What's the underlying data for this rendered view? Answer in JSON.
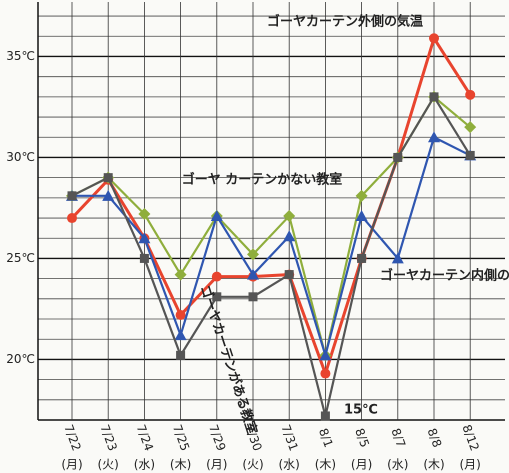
{
  "chart_data": {
    "type": "line",
    "categories": [
      "7/22",
      "7/23",
      "7/24",
      "7/25",
      "7/29",
      "7/30",
      "7/31",
      "8/1",
      "8/5",
      "8/7",
      "8/8",
      "8/12"
    ],
    "weekdays": [
      "(月)",
      "(火)",
      "(水)",
      "(木)",
      "(月)",
      "(火)",
      "(水)",
      "(木)",
      "(月)",
      "(水)",
      "(木)",
      "(月)"
    ],
    "series": [
      {
        "name": "ゴーヤカーテン外側の気温",
        "color": "#e8442e",
        "marker": "circle",
        "values": [
          27.0,
          28.9,
          26.0,
          22.2,
          24.1,
          24.1,
          24.2,
          19.3,
          25.0,
          30.0,
          35.9,
          33.1
        ]
      },
      {
        "name": "ゴーヤ カーテンかない教室",
        "color": "#8fae3c",
        "marker": "diamond",
        "values": [
          28.1,
          29.0,
          27.2,
          24.2,
          27.1,
          25.2,
          27.1,
          20.2,
          28.1,
          30.0,
          33.0,
          31.5
        ]
      },
      {
        "name": "ゴーヤカーテン内側の気温",
        "color": "#2f56b0",
        "marker": "triangle",
        "values": [
          28.1,
          28.1,
          26.0,
          21.2,
          27.1,
          24.2,
          26.1,
          20.2,
          27.1,
          25.0,
          31.0,
          30.1
        ]
      },
      {
        "name": "ゴーヤカーテンがある教室",
        "color": "#555555",
        "marker": "square",
        "values": [
          28.1,
          29.0,
          25.0,
          20.2,
          23.1,
          23.1,
          24.2,
          17.2,
          25.0,
          30.0,
          33.0,
          30.1
        ]
      }
    ],
    "annotation": "15℃",
    "ylim": [
      17,
      37.4
    ],
    "yticks": [
      {
        "value": 20,
        "label": "20℃"
      },
      {
        "value": 25,
        "label": "25℃"
      },
      {
        "value": 30,
        "label": "30℃"
      },
      {
        "value": 35,
        "label": "35℃"
      }
    ],
    "minor_yticks": [
      18,
      19,
      21,
      22,
      23,
      24,
      26,
      27,
      28,
      29,
      31,
      32,
      33,
      34,
      36,
      37
    ],
    "grid": true
  }
}
